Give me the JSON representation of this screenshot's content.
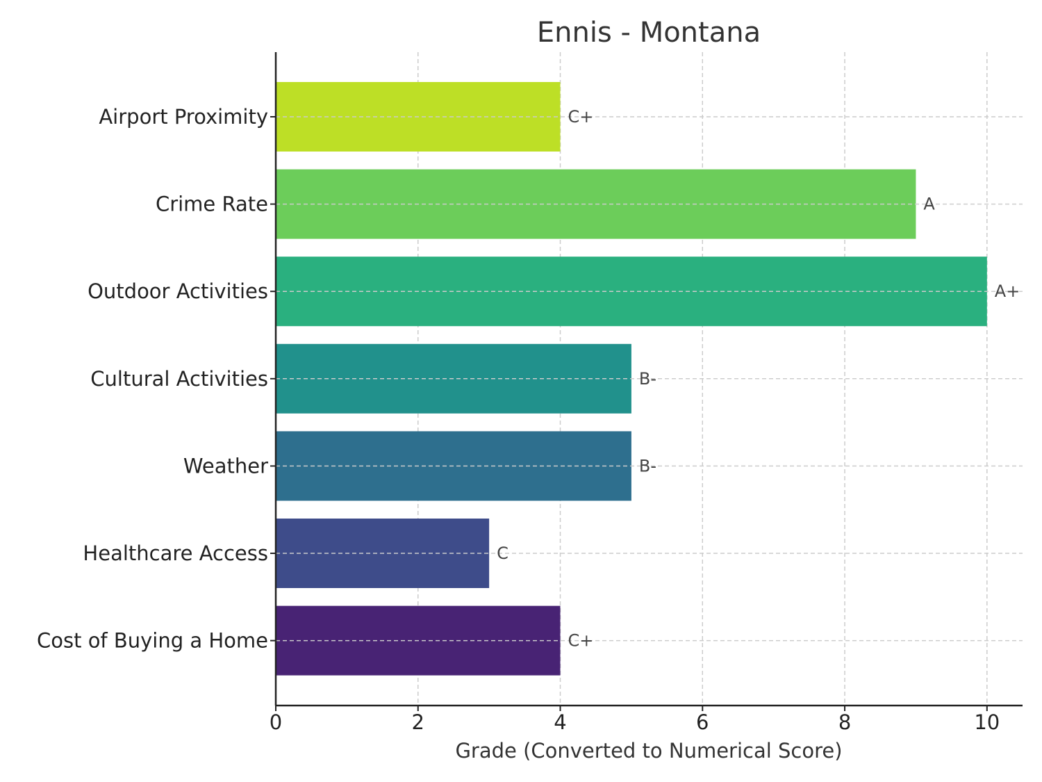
{
  "chart_data": {
    "type": "bar",
    "orientation": "horizontal",
    "title": "Ennis - Montana",
    "xlabel": "Grade (Converted to Numerical Score)",
    "ylabel": "",
    "xlim": [
      0,
      10.5
    ],
    "xticks": [
      0,
      2,
      4,
      6,
      8,
      10
    ],
    "grid": true,
    "categories": [
      "Airport Proximity",
      "Crime Rate",
      "Outdoor Activities",
      "Cultural Activities",
      "Weather",
      "Healthcare Access",
      "Cost of Buying a Home"
    ],
    "values": [
      4,
      9,
      10,
      5,
      5,
      3,
      4
    ],
    "grades": [
      "C+",
      "A",
      "A+",
      "B-",
      "B-",
      "C",
      "C+"
    ],
    "colors": [
      "#bddf26",
      "#6ccd5a",
      "#2ab07f",
      "#21918c",
      "#2e6f8e",
      "#3e4c8a",
      "#482374"
    ]
  }
}
